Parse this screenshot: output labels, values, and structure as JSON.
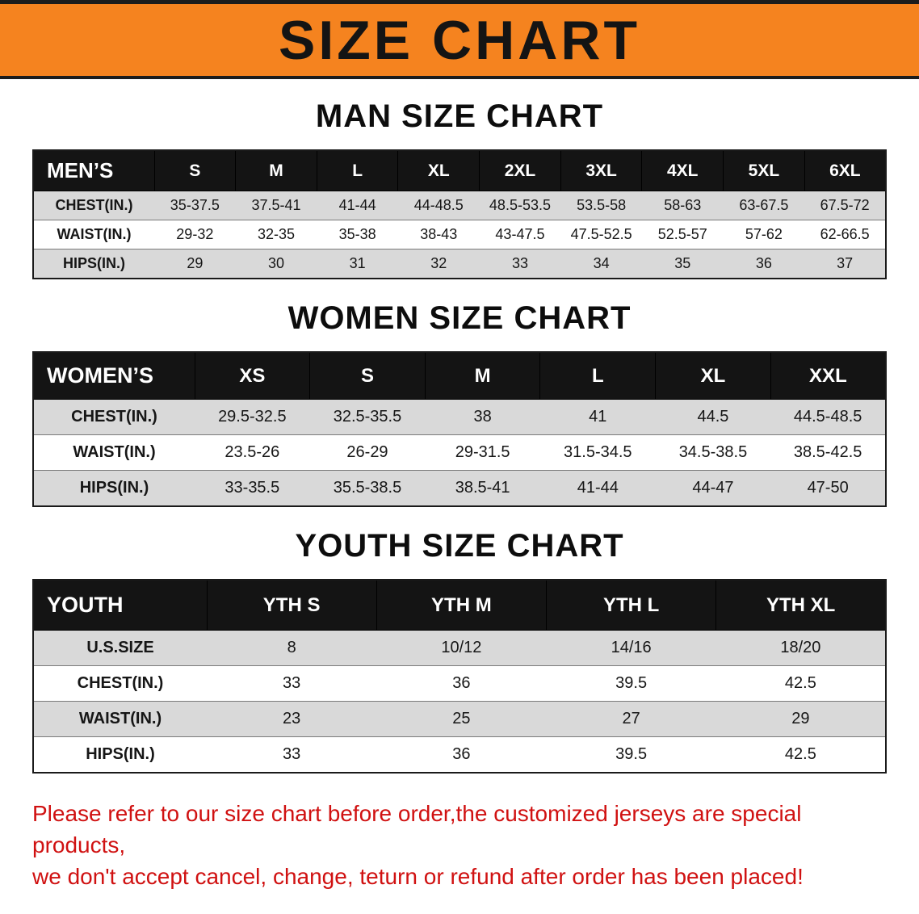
{
  "banner": {
    "title": "SIZE CHART",
    "bg_color": "#F5831F"
  },
  "sections": [
    {
      "id": "men",
      "heading": "MAN SIZE CHART",
      "table": {
        "header": [
          "MEN’S",
          "S",
          "M",
          "L",
          "XL",
          "2XL",
          "3XL",
          "4XL",
          "5XL",
          "6XL"
        ],
        "rows": [
          [
            "CHEST(IN.)",
            "35-37.5",
            "37.5-41",
            "41-44",
            "44-48.5",
            "48.5-53.5",
            "53.5-58",
            "58-63",
            "63-67.5",
            "67.5-72"
          ],
          [
            "WAIST(IN.)",
            "29-32",
            "32-35",
            "35-38",
            "38-43",
            "43-47.5",
            "47.5-52.5",
            "52.5-57",
            "57-62",
            "62-66.5"
          ],
          [
            "HIPS(IN.)",
            "29",
            "30",
            "31",
            "32",
            "33",
            "34",
            "35",
            "36",
            "37"
          ]
        ],
        "shaded": [
          true,
          false,
          true
        ]
      }
    },
    {
      "id": "women",
      "heading": "WOMEN SIZE CHART",
      "table": {
        "header": [
          "WOMEN’S",
          "XS",
          "S",
          "M",
          "L",
          "XL",
          "XXL"
        ],
        "rows": [
          [
            "CHEST(IN.)",
            "29.5-32.5",
            "32.5-35.5",
            "38",
            "41",
            "44.5",
            "44.5-48.5"
          ],
          [
            "WAIST(IN.)",
            "23.5-26",
            "26-29",
            "29-31.5",
            "31.5-34.5",
            "34.5-38.5",
            "38.5-42.5"
          ],
          [
            "HIPS(IN.)",
            "33-35.5",
            "35.5-38.5",
            "38.5-41",
            "41-44",
            "44-47",
            "47-50"
          ]
        ],
        "shaded": [
          true,
          false,
          true
        ]
      }
    },
    {
      "id": "youth",
      "heading": "YOUTH SIZE CHART",
      "table": {
        "header": [
          "YOUTH",
          "YTH S",
          "YTH M",
          "YTH L",
          "YTH XL"
        ],
        "rows": [
          [
            "U.S.SIZE",
            "8",
            "10/12",
            "14/16",
            "18/20"
          ],
          [
            "CHEST(IN.)",
            "33",
            "36",
            "39.5",
            "42.5"
          ],
          [
            "WAIST(IN.)",
            "23",
            "25",
            "27",
            "29"
          ],
          [
            "HIPS(IN.)",
            "33",
            "36",
            "39.5",
            "42.5"
          ]
        ],
        "shaded": [
          true,
          false,
          true,
          false
        ]
      }
    }
  ],
  "footer": {
    "line1": "Please refer to our size chart before order,the customized jerseys are special products,",
    "line2": "we don't accept cancel, change, teturn or refund after order has been placed!",
    "color": "#d01111"
  }
}
